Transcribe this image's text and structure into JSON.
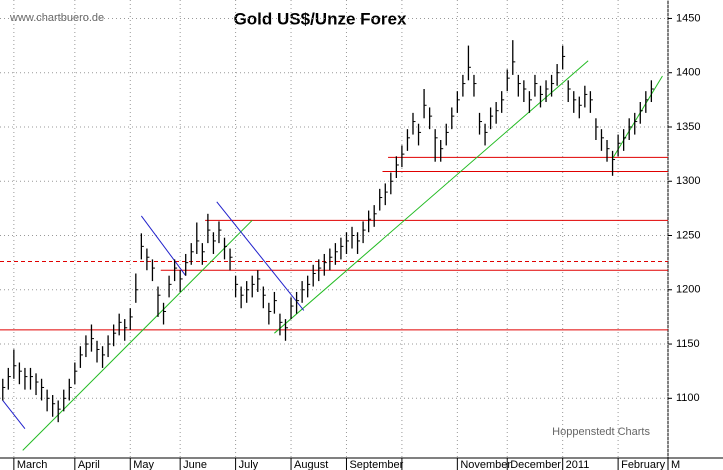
{
  "chart_data": {
    "type": "ohlc",
    "title": "Gold US$/Unze Forex",
    "annotations": [
      "www.chartbuero.de",
      "Hoppenstedt Charts"
    ],
    "xlim": [
      -0.5,
      120
    ],
    "xticks": [
      {
        "value": 2,
        "label": "March"
      },
      {
        "value": 13,
        "label": "April"
      },
      {
        "value": 23,
        "label": "May"
      },
      {
        "value": 32,
        "label": "June"
      },
      {
        "value": 42,
        "label": "July"
      },
      {
        "value": 52,
        "label": "August"
      },
      {
        "value": 62,
        "label": "September"
      },
      {
        "value": 72,
        "label": null
      },
      {
        "value": 82,
        "label": "November"
      },
      {
        "value": 91,
        "label": "December"
      },
      {
        "value": 101,
        "label": "2011"
      },
      {
        "value": 111,
        "label": "February"
      },
      {
        "value": 120,
        "label": "M"
      }
    ],
    "ylim": [
      1045,
      1467
    ],
    "yticks": [
      1100,
      1150,
      1200,
      1250,
      1300,
      1350,
      1400,
      1450
    ],
    "grid": true,
    "color": "#000000",
    "series": {
      "close": [
        1110,
        1120,
        1130,
        1125,
        1120,
        1120,
        1115,
        1110,
        1100,
        1095,
        1090,
        1100,
        1110,
        1125,
        1140,
        1150,
        1155,
        1145,
        1140,
        1150,
        1160,
        1170,
        1165,
        1175,
        1200,
        1240,
        1230,
        1220,
        1195,
        1180,
        1205,
        1220,
        1210,
        1225,
        1235,
        1245,
        1235,
        1255,
        1245,
        1255,
        1240,
        1230,
        1205,
        1195,
        1200,
        1205,
        1210,
        1195,
        1180,
        1190,
        1170,
        1165,
        1185,
        1190,
        1200,
        1205,
        1215,
        1220,
        1225,
        1230,
        1235,
        1240,
        1245,
        1250,
        1245,
        1255,
        1265,
        1270,
        1285,
        1290,
        1300,
        1315,
        1325,
        1340,
        1355,
        1345,
        1370,
        1360,
        1340,
        1330,
        1345,
        1360,
        1375,
        1390,
        1405,
        1390,
        1355,
        1345,
        1360,
        1365,
        1375,
        1395,
        1410,
        1390,
        1385,
        1375,
        1390,
        1380,
        1385,
        1390,
        1400,
        1415,
        1385,
        1375,
        1370,
        1380,
        1375,
        1350,
        1340,
        1330,
        1320,
        1335,
        1340,
        1350,
        1355,
        1365,
        1375,
        1385
      ],
      "high": [
        1118,
        1128,
        1145,
        1133,
        1128,
        1128,
        1123,
        1118,
        1108,
        1103,
        1098,
        1108,
        1118,
        1133,
        1148,
        1158,
        1168,
        1153,
        1148,
        1158,
        1168,
        1178,
        1173,
        1183,
        1215,
        1252,
        1238,
        1228,
        1203,
        1188,
        1213,
        1228,
        1218,
        1233,
        1243,
        1262,
        1243,
        1270,
        1253,
        1263,
        1248,
        1238,
        1213,
        1203,
        1208,
        1213,
        1218,
        1203,
        1188,
        1198,
        1178,
        1173,
        1193,
        1198,
        1208,
        1213,
        1223,
        1228,
        1233,
        1238,
        1243,
        1248,
        1253,
        1258,
        1253,
        1263,
        1273,
        1278,
        1293,
        1298,
        1308,
        1323,
        1333,
        1348,
        1363,
        1353,
        1385,
        1368,
        1348,
        1338,
        1353,
        1368,
        1383,
        1398,
        1425,
        1398,
        1363,
        1353,
        1368,
        1373,
        1383,
        1403,
        1430,
        1398,
        1393,
        1383,
        1398,
        1388,
        1393,
        1398,
        1408,
        1425,
        1393,
        1383,
        1378,
        1388,
        1383,
        1358,
        1348,
        1338,
        1328,
        1343,
        1348,
        1358,
        1363,
        1373,
        1383,
        1393
      ],
      "low": [
        1098,
        1108,
        1118,
        1113,
        1108,
        1108,
        1103,
        1098,
        1088,
        1083,
        1078,
        1088,
        1098,
        1113,
        1128,
        1138,
        1143,
        1133,
        1128,
        1138,
        1148,
        1158,
        1153,
        1163,
        1188,
        1228,
        1218,
        1208,
        1175,
        1168,
        1193,
        1208,
        1198,
        1213,
        1223,
        1233,
        1223,
        1243,
        1233,
        1243,
        1228,
        1218,
        1193,
        1183,
        1188,
        1193,
        1198,
        1183,
        1168,
        1178,
        1158,
        1153,
        1173,
        1178,
        1188,
        1193,
        1203,
        1208,
        1213,
        1218,
        1223,
        1228,
        1233,
        1238,
        1233,
        1243,
        1253,
        1258,
        1273,
        1278,
        1288,
        1303,
        1313,
        1328,
        1343,
        1333,
        1358,
        1348,
        1318,
        1318,
        1333,
        1348,
        1363,
        1378,
        1393,
        1378,
        1343,
        1333,
        1348,
        1353,
        1363,
        1383,
        1398,
        1378,
        1373,
        1363,
        1378,
        1368,
        1373,
        1378,
        1388,
        1403,
        1373,
        1363,
        1358,
        1368,
        1363,
        1338,
        1328,
        1318,
        1305,
        1323,
        1328,
        1338,
        1343,
        1353,
        1363,
        1373
      ]
    },
    "levels": [
      {
        "value": 1163,
        "start": -0.5,
        "color": "#e00000",
        "style": "solid"
      },
      {
        "value": 1218,
        "start": 28.5,
        "color": "#e00000",
        "style": "solid"
      },
      {
        "value": 1226,
        "start": -0.5,
        "color": "#e00000",
        "style": "dashed"
      },
      {
        "value": 1264,
        "start": 36.5,
        "color": "#e00000",
        "style": "solid"
      },
      {
        "value": 1309,
        "start": 68.5,
        "color": "#e00000",
        "style": "solid"
      },
      {
        "value": 1322,
        "start": 69.5,
        "color": "#e00000",
        "style": "solid"
      }
    ],
    "trendlines": [
      {
        "x": [
          3.6,
          45
        ],
        "y": [
          1052,
          1264
        ],
        "color": "#22bb22"
      },
      {
        "x": [
          49,
          105.6
        ],
        "y": [
          1160,
          1411
        ],
        "color": "#22bb22"
      },
      {
        "x": [
          110,
          119
        ],
        "y": [
          1321,
          1397
        ],
        "color": "#22bb22"
      },
      {
        "x": [
          0,
          4
        ],
        "y": [
          1098,
          1072
        ],
        "color": "#2222cc"
      },
      {
        "x": [
          25,
          33
        ],
        "y": [
          1268,
          1213
        ],
        "color": "#2222cc"
      },
      {
        "x": [
          38.6,
          54.3
        ],
        "y": [
          1281,
          1181
        ],
        "color": "#2222cc"
      }
    ]
  }
}
